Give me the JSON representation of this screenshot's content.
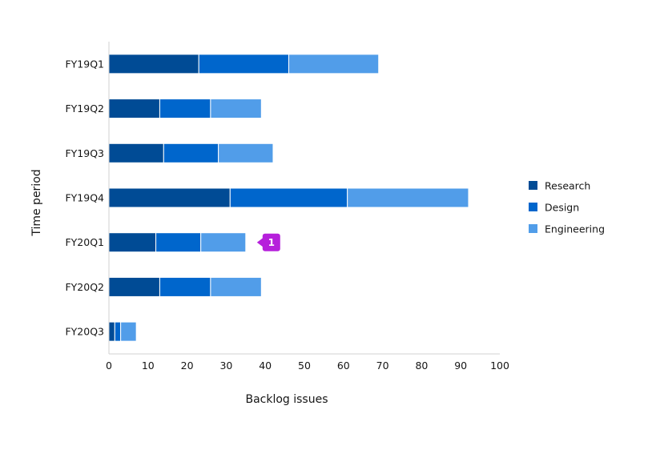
{
  "chart_data": {
    "type": "bar",
    "orientation": "horizontal",
    "stacked": true,
    "categories": [
      "FY19Q1",
      "FY19Q2",
      "FY19Q3",
      "FY19Q4",
      "FY20Q1",
      "FY20Q2",
      "FY20Q3"
    ],
    "series": [
      {
        "name": "Research",
        "color": "#004b95",
        "values": [
          23,
          13,
          14,
          31,
          12,
          13,
          1.5
        ]
      },
      {
        "name": "Design",
        "color": "#0066cc",
        "values": [
          23,
          13,
          14,
          30,
          11.5,
          13,
          1.5
        ]
      },
      {
        "name": "Engineering",
        "color": "#519de9",
        "values": [
          23,
          13,
          14,
          31,
          11.5,
          13,
          4
        ]
      }
    ],
    "xlabel": "Backlog issues",
    "ylabel": "Time period",
    "xlim": [
      0,
      100
    ],
    "xticks": [
      0,
      10,
      20,
      30,
      40,
      50,
      60,
      70,
      80,
      90,
      100
    ],
    "grid": false,
    "legend_position": "right",
    "annotations": [
      {
        "category": "FY20Q1",
        "label": "1",
        "color": "#b620db"
      }
    ]
  }
}
